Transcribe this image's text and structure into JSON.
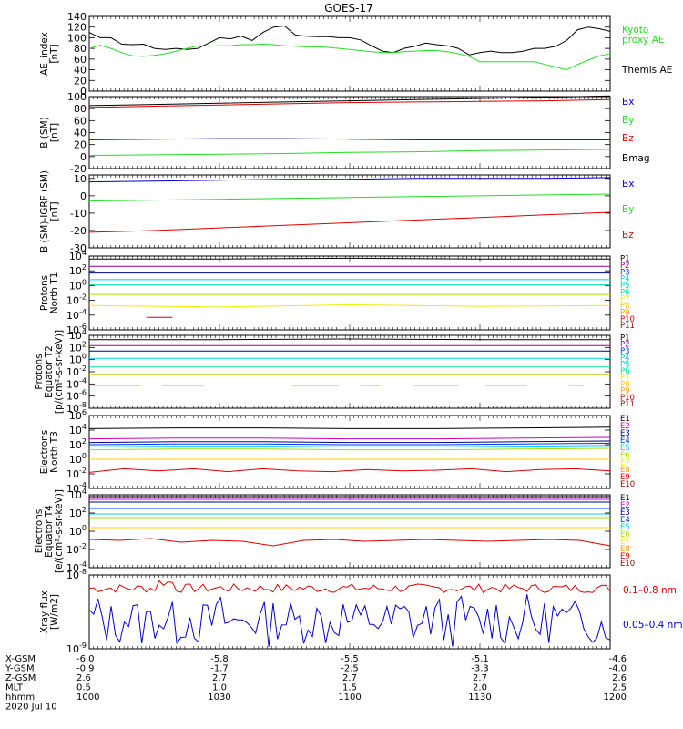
{
  "title": "GOES-17",
  "colors": {
    "black": "#000000",
    "green": "#22dd22",
    "blue": "#0000cc",
    "red": "#dd0000",
    "navy": "#000080",
    "mblue": "#0033ff",
    "cyan": "#00ccee",
    "teal": "#00ddaa",
    "ygreen": "#aadd00",
    "yellow": "#eeee00",
    "gold": "#ffcc00",
    "orange": "#ff9900",
    "dred": "#cc0000",
    "crimson": "#990000",
    "purple": "#990099",
    "violet": "#cc00cc"
  },
  "chart_data": [
    {
      "type": "line",
      "id": "ae",
      "ylabel_lines": [
        "AE_index",
        "[nT]"
      ],
      "ylim": [
        0,
        140
      ],
      "yticks": [
        "0",
        "20",
        "40",
        "60",
        "80",
        "100",
        "120",
        "140"
      ],
      "legend": [
        {
          "text": "Kyoto",
          "color": "green"
        },
        {
          "text": "proxy AE",
          "color": "green"
        },
        {
          "text": "Themis AE",
          "color": "black"
        }
      ],
      "series": [
        {
          "name": "Themis AE",
          "color": "black",
          "values": [
            110,
            100,
            100,
            88,
            87,
            88,
            80,
            78,
            80,
            78,
            80,
            90,
            100,
            98,
            103,
            95,
            110,
            120,
            122,
            105,
            103,
            102,
            102,
            100,
            100,
            96,
            85,
            75,
            72,
            80,
            84,
            90,
            87,
            85,
            80,
            68,
            72,
            75,
            72,
            72,
            75,
            80,
            80,
            84,
            95,
            115,
            120,
            117,
            112
          ]
        },
        {
          "name": "Kyoto proxy AE",
          "color": "green",
          "values": [
            80,
            86,
            80,
            72,
            66,
            65,
            67,
            70,
            75,
            80,
            85,
            84,
            85,
            85,
            87,
            87,
            88,
            87,
            85,
            84,
            83,
            83,
            82,
            80,
            78,
            76,
            74,
            72,
            72,
            74,
            75,
            76,
            76,
            74,
            70,
            65,
            55,
            55,
            55,
            55,
            55,
            55,
            50,
            45,
            40,
            50,
            58,
            66,
            70
          ]
        }
      ]
    },
    {
      "type": "line",
      "id": "bsm",
      "ylabel_lines": [
        "B (SM)",
        "[nT]"
      ],
      "ylim": [
        -20,
        100
      ],
      "yticks": [
        "-20",
        "0",
        "20",
        "40",
        "60",
        "80",
        "100"
      ],
      "legend": [
        {
          "text": "Bx",
          "color": "blue"
        },
        {
          "text": "By",
          "color": "green"
        },
        {
          "text": "Bz",
          "color": "red"
        },
        {
          "text": "Bmag",
          "color": "black"
        }
      ],
      "series": [
        {
          "name": "Bmag",
          "color": "black",
          "values": [
            85,
            87,
            89,
            91,
            93,
            95,
            97,
            99,
            101
          ]
        },
        {
          "name": "Bz",
          "color": "red",
          "values": [
            82,
            84,
            86,
            88,
            90,
            91,
            92,
            93,
            95
          ]
        },
        {
          "name": "Bx",
          "color": "blue",
          "values": [
            28,
            29,
            30,
            30,
            29,
            28,
            28,
            28,
            28
          ]
        },
        {
          "name": "By",
          "color": "green",
          "values": [
            2,
            3,
            4,
            5,
            7,
            8,
            10,
            11,
            12
          ]
        }
      ]
    },
    {
      "type": "line",
      "id": "bigrf",
      "ylabel_lines": [
        "B (SM)-IGRF (SM)",
        "[nT]"
      ],
      "ylim": [
        -30,
        12
      ],
      "yticks": [
        "-30",
        "-20",
        "-10",
        "0",
        "10"
      ],
      "legend": [
        {
          "text": "Bx",
          "color": "blue"
        },
        {
          "text": "By",
          "color": "green"
        },
        {
          "text": "Bz",
          "color": "red"
        }
      ],
      "series": [
        {
          "name": "Bx",
          "color": "blue",
          "values": [
            8,
            8.5,
            9,
            9.5,
            9.5,
            10,
            10,
            10,
            10.5
          ]
        },
        {
          "name": "By",
          "color": "green",
          "values": [
            -3,
            -2.5,
            -2,
            -1.5,
            -1,
            -0.5,
            0,
            0.5,
            1
          ]
        },
        {
          "name": "Bz",
          "color": "red",
          "values": [
            -21,
            -20,
            -18.5,
            -17,
            -15.5,
            -14,
            -12.5,
            -11,
            -9.5
          ]
        }
      ]
    },
    {
      "type": "line",
      "id": "pnorth",
      "ylabel_lines": [
        "Protons",
        "North T1"
      ],
      "log": true,
      "ylim": [
        -6,
        4
      ],
      "yticks": [
        "10^-6",
        "10^-4",
        "10^-2",
        "10^0",
        "10^2",
        "10^4"
      ],
      "legend": [
        {
          "text": "P1",
          "color": "black"
        },
        {
          "text": "P2",
          "color": "purple"
        },
        {
          "text": "P3",
          "color": "mblue"
        },
        {
          "text": "P4",
          "color": "cyan"
        },
        {
          "text": "P5",
          "color": "cyan"
        },
        {
          "text": "P6",
          "color": "teal"
        },
        {
          "text": "P7",
          "color": "yellow"
        },
        {
          "text": "P8",
          "color": "gold"
        },
        {
          "text": "P9",
          "color": "orange"
        },
        {
          "text": "P10",
          "color": "red"
        },
        {
          "text": "P11",
          "color": "crimson"
        }
      ],
      "series": [
        {
          "name": "P1",
          "color": "black",
          "values": [
            3.6,
            3.6,
            3.7,
            3.6,
            3.6
          ]
        },
        {
          "name": "P2",
          "color": "purple",
          "values": [
            2.6,
            2.6,
            2.6,
            2.6,
            2.6
          ]
        },
        {
          "name": "P3",
          "color": "navy",
          "values": [
            1.7,
            1.7,
            1.7,
            1.7,
            1.7
          ]
        },
        {
          "name": "P4",
          "color": "cyan",
          "values": [
            0.8,
            0.8,
            0.8,
            0.8,
            0.8
          ]
        },
        {
          "name": "P5",
          "color": "teal",
          "values": [
            0.1,
            0.1,
            0.1,
            0.1,
            0.1
          ]
        },
        {
          "name": "P7",
          "color": "ygreen",
          "values": [
            -1.2,
            -1.2,
            -1.2,
            -1.2,
            -1.2
          ]
        },
        {
          "name": "P8",
          "color": "yellow",
          "values": [
            -2.7,
            -2.9,
            -2.6,
            -2.8,
            -2.7
          ]
        },
        {
          "name": "P9",
          "color": "red",
          "segments": [
            [
              0.11,
              0.16,
              -4.3
            ]
          ]
        }
      ]
    },
    {
      "type": "line",
      "id": "pequator",
      "ylabel_lines": [
        "Protons",
        "Equator T2",
        "[p/(cm²-s-sr-keV)]"
      ],
      "log": true,
      "ylim": [
        -8,
        4
      ],
      "yticks": [
        "10^-8",
        "10^-6",
        "10^-4",
        "10^-2",
        "10^0",
        "10^2",
        "10^4"
      ],
      "legend": [
        {
          "text": "P1",
          "color": "black"
        },
        {
          "text": "P2",
          "color": "purple"
        },
        {
          "text": "P3",
          "color": "mblue"
        },
        {
          "text": "P4",
          "color": "cyan"
        },
        {
          "text": "P5",
          "color": "cyan"
        },
        {
          "text": "P6",
          "color": "teal"
        },
        {
          "text": "P7",
          "color": "yellow"
        },
        {
          "text": "P8",
          "color": "gold"
        },
        {
          "text": "P9",
          "color": "orange"
        },
        {
          "text": "P10",
          "color": "red"
        },
        {
          "text": "P11",
          "color": "crimson"
        }
      ],
      "series": [
        {
          "name": "P1",
          "color": "black",
          "values": [
            3.3,
            3.3,
            3.4,
            3.3,
            3.3
          ]
        },
        {
          "name": "P2",
          "color": "purple",
          "values": [
            2.3,
            2.3,
            2.3,
            2.3,
            2.3
          ]
        },
        {
          "name": "P3",
          "color": "navy",
          "values": [
            1.4,
            1.4,
            1.4,
            1.4,
            1.4
          ]
        },
        {
          "name": "P4",
          "color": "cyan",
          "values": [
            0.2,
            0.2,
            0.2,
            0.2,
            0.2
          ]
        },
        {
          "name": "P5",
          "color": "teal",
          "values": [
            -1.2,
            -1.2,
            -1.2,
            -1.2,
            -1.2
          ]
        },
        {
          "name": "P7",
          "color": "ygreen",
          "values": [
            -2.4,
            -2.4,
            -2.4,
            -2.4,
            -2.4
          ]
        },
        {
          "name": "P9",
          "color": "yellow",
          "segments": [
            [
              0.0,
              0.1,
              -4.3
            ],
            [
              0.14,
              0.22,
              -4.3
            ],
            [
              0.39,
              0.48,
              -4.3
            ],
            [
              0.52,
              0.56,
              -4.3
            ],
            [
              0.62,
              0.71,
              -4.3
            ],
            [
              0.76,
              0.84,
              -4.3
            ],
            [
              0.92,
              0.95,
              -4.3
            ]
          ]
        }
      ]
    },
    {
      "type": "line",
      "id": "enorth",
      "ylabel_lines": [
        "Electrons",
        "North T3"
      ],
      "log": true,
      "ylim": [
        -4,
        6
      ],
      "yticks": [
        "10^-4",
        "10^-2",
        "10^0",
        "10^2",
        "10^4",
        "10^6"
      ],
      "legend": [
        {
          "text": "E1",
          "color": "black"
        },
        {
          "text": "E2",
          "color": "violet"
        },
        {
          "text": "E3",
          "color": "navy"
        },
        {
          "text": "E4",
          "color": "mblue"
        },
        {
          "text": "E5",
          "color": "cyan"
        },
        {
          "text": "E6",
          "color": "ygreen"
        },
        {
          "text": "E7",
          "color": "yellow"
        },
        {
          "text": "E8",
          "color": "orange"
        },
        {
          "text": "E9",
          "color": "red"
        },
        {
          "text": "E10",
          "color": "crimson"
        }
      ],
      "series": [
        {
          "name": "E1",
          "color": "black",
          "values": [
            4.2,
            4.3,
            4.3,
            4.2,
            4.2,
            4.3,
            4.4
          ]
        },
        {
          "name": "E2",
          "color": "violet",
          "values": [
            2.8,
            2.9,
            2.9,
            2.8,
            2.8,
            2.9,
            3.0
          ]
        },
        {
          "name": "E3",
          "color": "navy",
          "values": [
            2.3,
            2.4,
            2.4,
            2.3,
            2.3,
            2.4,
            2.5
          ]
        },
        {
          "name": "E4",
          "color": "mblue",
          "values": [
            2.0,
            2.1,
            2.1,
            2.0,
            2.0,
            2.1,
            2.2
          ]
        },
        {
          "name": "E5",
          "color": "cyan",
          "values": [
            1.7,
            1.8,
            1.8,
            1.7,
            1.7,
            1.8,
            1.9
          ]
        },
        {
          "name": "E6",
          "color": "ygreen",
          "values": [
            1.3,
            1.4,
            1.4,
            1.3,
            1.3,
            1.4,
            1.5
          ]
        },
        {
          "name": "E7",
          "color": "gold",
          "values": [
            0.0,
            0.0,
            0.0,
            0.0,
            0.0,
            0.0,
            0.0
          ]
        },
        {
          "name": "E9",
          "color": "red",
          "values": [
            -1.8,
            -1.3,
            -1.6,
            -1.3,
            -1.7,
            -1.3,
            -1.6,
            -1.7,
            -1.4,
            -1.6,
            -1.5,
            -1.3,
            -1.7,
            -1.4,
            -1.3,
            -1.6
          ]
        }
      ]
    },
    {
      "type": "line",
      "id": "eequator",
      "ylabel_lines": [
        "Electrons",
        "Equator T4",
        "[e/(cm²-s-sr-keV)]"
      ],
      "log": true,
      "ylim": [
        -4,
        4
      ],
      "yticks": [
        "10^-4",
        "10^-2",
        "10^0",
        "10^2",
        "10^4"
      ],
      "legend": [
        {
          "text": "E1",
          "color": "black"
        },
        {
          "text": "E2",
          "color": "violet"
        },
        {
          "text": "E3",
          "color": "navy"
        },
        {
          "text": "E4",
          "color": "mblue"
        },
        {
          "text": "E5",
          "color": "cyan"
        },
        {
          "text": "E6",
          "color": "ygreen"
        },
        {
          "text": "E7",
          "color": "yellow"
        },
        {
          "text": "E8",
          "color": "orange"
        },
        {
          "text": "E9",
          "color": "red"
        },
        {
          "text": "E10",
          "color": "crimson"
        }
      ],
      "series": [
        {
          "name": "E1",
          "color": "black",
          "values": [
            3.8,
            3.8,
            3.8,
            3.8,
            3.8,
            3.8,
            3.8
          ]
        },
        {
          "name": "E2",
          "color": "violet",
          "values": [
            3.5,
            3.5,
            3.5,
            3.5,
            3.5,
            3.5,
            3.5
          ]
        },
        {
          "name": "E3",
          "color": "navy",
          "values": [
            3.2,
            3.2,
            3.2,
            3.2,
            3.2,
            3.2,
            3.2
          ]
        },
        {
          "name": "E4",
          "color": "mblue",
          "values": [
            2.5,
            2.5,
            2.5,
            2.5,
            2.5,
            2.5,
            2.5
          ]
        },
        {
          "name": "E5",
          "color": "cyan",
          "values": [
            1.9,
            1.9,
            1.9,
            1.9,
            1.9,
            1.9,
            1.9
          ]
        },
        {
          "name": "E6",
          "color": "ygreen",
          "values": [
            1.5,
            1.5,
            1.5,
            1.5,
            1.5,
            1.5,
            1.5
          ]
        },
        {
          "name": "E7",
          "color": "gold",
          "values": [
            0.4,
            0.4,
            0.4,
            0.4,
            0.4,
            0.4,
            0.4
          ]
        },
        {
          "name": "E9",
          "color": "red",
          "values": [
            -0.9,
            -1.0,
            -0.8,
            -1.2,
            -1.0,
            -1.1,
            -1.6,
            -1.0,
            -0.9,
            -1.1,
            -1.0,
            -0.9,
            -1.0,
            -1.1,
            -1.0,
            -0.9,
            -1.0,
            -1.6
          ]
        }
      ]
    },
    {
      "type": "line",
      "id": "xray",
      "ylabel_lines": [
        "Xray flux",
        "[W/m2]"
      ],
      "log": true,
      "ylim": [
        -9,
        -8
      ],
      "yticks": [
        "10^-9",
        "10^-8"
      ],
      "legend": [
        {
          "text": "0.1–0.8 nm",
          "color": "red"
        },
        {
          "text": "0.05–0.4 nm",
          "color": "blue"
        }
      ],
      "series": [
        {
          "name": "0.1–0.8 nm",
          "color": "red",
          "pattern": "xray_long"
        },
        {
          "name": "0.05–0.4 nm",
          "color": "blue",
          "pattern": "xray_short"
        }
      ]
    }
  ],
  "xaxis": {
    "rows": [
      {
        "label": "X-GSM",
        "values": [
          "-6.0",
          "-5.8",
          "-5.5",
          "-5.1",
          "-4.6"
        ]
      },
      {
        "label": "Y-GSM",
        "values": [
          "-0.9",
          "-1.7",
          "-2.5",
          "-3.3",
          "-4.0"
        ]
      },
      {
        "label": "Z-GSM",
        "values": [
          "2.6",
          "2.7",
          "2.7",
          "2.7",
          "2.6"
        ]
      },
      {
        "label": "MLT",
        "values": [
          "0.5",
          "1.0",
          "1.5",
          "2.0",
          "2.5"
        ]
      },
      {
        "label": "hhmm",
        "values": [
          "1000",
          "1030",
          "1100",
          "1130",
          "1200"
        ]
      }
    ],
    "date": "2020 Jul 10"
  }
}
